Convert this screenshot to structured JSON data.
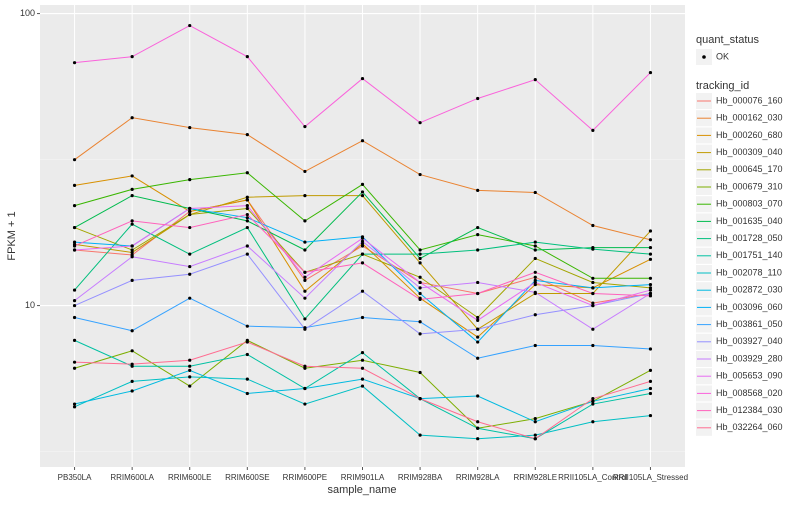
{
  "chart_data": {
    "type": "line",
    "x_label": "sample_name",
    "y_label": "FPKM + 1",
    "categories": [
      "PB350LA",
      "RRIM600LA",
      "RRIM600LE",
      "RRIM600SE",
      "RRIM600PE",
      "RRIM901LA",
      "RRIM928BA",
      "RRIM928LA",
      "RRIM928LE",
      "RRII105LA_Control",
      "RRII105LA_Stressed"
    ],
    "ylim": [
      2.8,
      107
    ],
    "yticks": [
      10,
      100
    ],
    "log_y": true,
    "grid": true,
    "legend_position": "right",
    "point_color": "#000000",
    "status_legend": {
      "title": "quant_status",
      "items": [
        "OK"
      ]
    },
    "series_legend_title": "tracking_id",
    "series": [
      {
        "name": "Hb_000076_160",
        "color": "#F8766D",
        "values": [
          15.5,
          14.9,
          21,
          23,
          12.2,
          16,
          12,
          11,
          12.5,
          10.2,
          11
        ]
      },
      {
        "name": "Hb_000162_030",
        "color": "#EA8331",
        "values": [
          31.6,
          44,
          40.7,
          38.5,
          28.8,
          36.7,
          28.1,
          24.8,
          24.4,
          18.8,
          16.8
        ]
      },
      {
        "name": "Hb_000260_680",
        "color": "#D89000",
        "values": [
          25.8,
          27.8,
          21,
          23,
          11.2,
          16.3,
          10.6,
          7.8,
          11.8,
          11.5,
          14.4
        ]
      },
      {
        "name": "Hb_000309_040",
        "color": "#C09B00",
        "values": [
          16.2,
          15.2,
          20.5,
          23.5,
          23.8,
          23.8,
          14,
          8.3,
          11,
          11,
          18
        ]
      },
      {
        "name": "Hb_000645_170",
        "color": "#A3A500",
        "values": [
          18.5,
          15.5,
          20.5,
          21.5,
          13,
          15,
          12.5,
          9.1,
          14.5,
          12,
          11.5
        ]
      },
      {
        "name": "Hb_000679_310",
        "color": "#7CAE00",
        "values": [
          6.1,
          7.0,
          5.3,
          7.6,
          6.1,
          6.5,
          5.9,
          3.8,
          4.1,
          4.7,
          6.0
        ]
      },
      {
        "name": "Hb_000803_070",
        "color": "#39B600",
        "values": [
          22,
          25,
          27,
          28.5,
          19.5,
          26,
          15.5,
          17.5,
          16,
          12.4,
          12.4
        ]
      },
      {
        "name": "Hb_001635_040",
        "color": "#00BB4E",
        "values": [
          18.5,
          23.8,
          21.5,
          19.5,
          15.5,
          24.5,
          14.5,
          18.5,
          15.5,
          15.8,
          15.8
        ]
      },
      {
        "name": "Hb_001728_050",
        "color": "#00BF7D",
        "values": [
          11.3,
          19,
          15,
          18.5,
          9,
          15,
          15,
          15.5,
          16.5,
          15.6,
          15
        ]
      },
      {
        "name": "Hb_001751_140",
        "color": "#00C1A3",
        "values": [
          7.6,
          6.2,
          6.2,
          6.8,
          5.2,
          6.9,
          4.8,
          3.8,
          3.5,
          4.6,
          5.0
        ]
      },
      {
        "name": "Hb_002078_110",
        "color": "#00BFC4",
        "values": [
          4.5,
          5.5,
          5.7,
          5.6,
          4.6,
          5.3,
          3.6,
          3.5,
          3.6,
          4.0,
          4.2
        ]
      },
      {
        "name": "Hb_002872_030",
        "color": "#00BAE0",
        "values": [
          4.6,
          5.1,
          6.0,
          5.0,
          5.2,
          5.6,
          4.8,
          4.9,
          4.0,
          4.7,
          5.2
        ]
      },
      {
        "name": "Hb_003096_060",
        "color": "#00B0F6",
        "values": [
          16.5,
          16,
          21.5,
          20,
          16.5,
          17.2,
          11,
          7.5,
          12.2,
          11.5,
          11.8
        ]
      },
      {
        "name": "Hb_003861_050",
        "color": "#35A2FF",
        "values": [
          9.1,
          8.2,
          10.6,
          8.5,
          8.4,
          9.1,
          8.8,
          6.6,
          7.3,
          7.3,
          7.1
        ]
      },
      {
        "name": "Hb_003927_040",
        "color": "#9590FF",
        "values": [
          10,
          12.2,
          12.8,
          15,
          8.3,
          11.2,
          8.0,
          8.3,
          9.3,
          10,
          11
        ]
      },
      {
        "name": "Hb_003929_280",
        "color": "#C77CFF",
        "values": [
          10.4,
          14.7,
          13.6,
          16,
          10.6,
          16.6,
          11.5,
          12,
          11.1,
          8.3,
          11
        ]
      },
      {
        "name": "Hb_005653_090",
        "color": "#E76BF3",
        "values": [
          15.5,
          16,
          21.5,
          22,
          12.5,
          17,
          12,
          8.9,
          12,
          10,
          11.3
        ]
      },
      {
        "name": "Hb_008568_020",
        "color": "#FA62DB",
        "values": [
          67.9,
          71.2,
          91,
          71.2,
          41,
          59.9,
          42.3,
          51.2,
          59.4,
          39.8,
          62.8
        ]
      },
      {
        "name": "Hb_012384_030",
        "color": "#FF62BC",
        "values": [
          16,
          19.5,
          18.5,
          20.5,
          13,
          14,
          10.5,
          11,
          13,
          11,
          10.8
        ]
      },
      {
        "name": "Hb_032264_060",
        "color": "#FF6C91",
        "values": [
          6.4,
          6.3,
          6.5,
          7.5,
          6.2,
          6.1,
          4.8,
          4.0,
          3.5,
          4.8,
          5.5
        ]
      }
    ]
  }
}
